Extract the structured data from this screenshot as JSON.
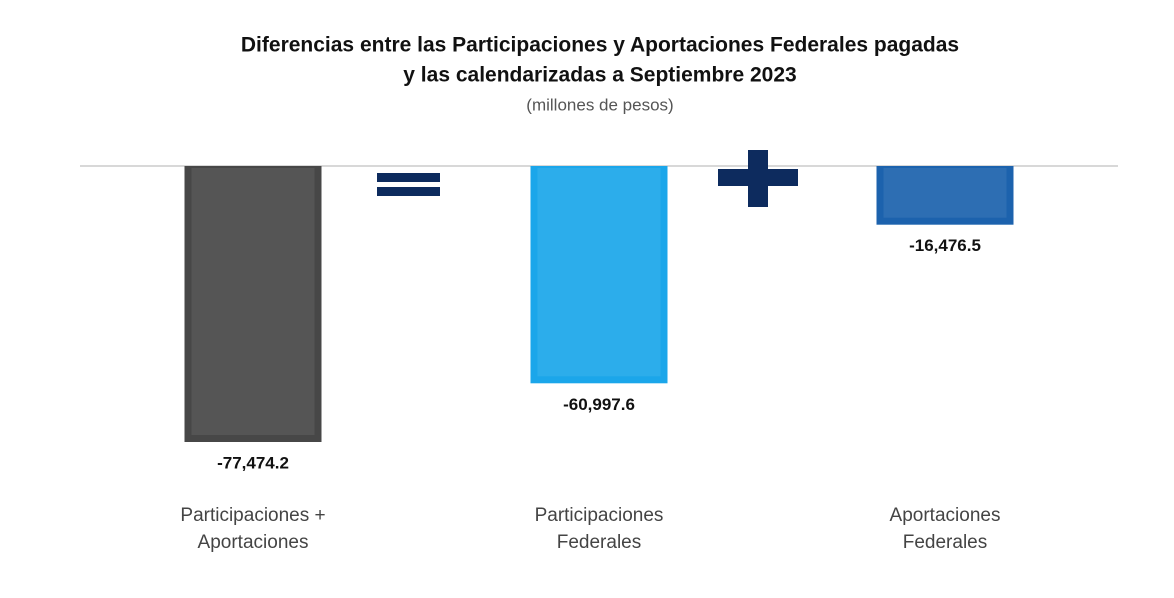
{
  "chart_data": {
    "type": "bar",
    "title": [
      "Diferencias entre las Participaciones y Aportaciones Federales pagadas",
      "y las calendarizadas a Septiembre 2023"
    ],
    "subtitle": "(millones de pesos)",
    "categories": [
      "Participaciones + Aportaciones",
      "Participaciones Federales",
      "Aportaciones Federales"
    ],
    "values": [
      -77474.2,
      -60997.6,
      -16476.5
    ],
    "value_labels": [
      "-77,474.2",
      "-60,997.6",
      "-16,476.5"
    ],
    "colors": [
      "#474747",
      "#1ba6ea",
      "#1c62ad"
    ]
  }
}
